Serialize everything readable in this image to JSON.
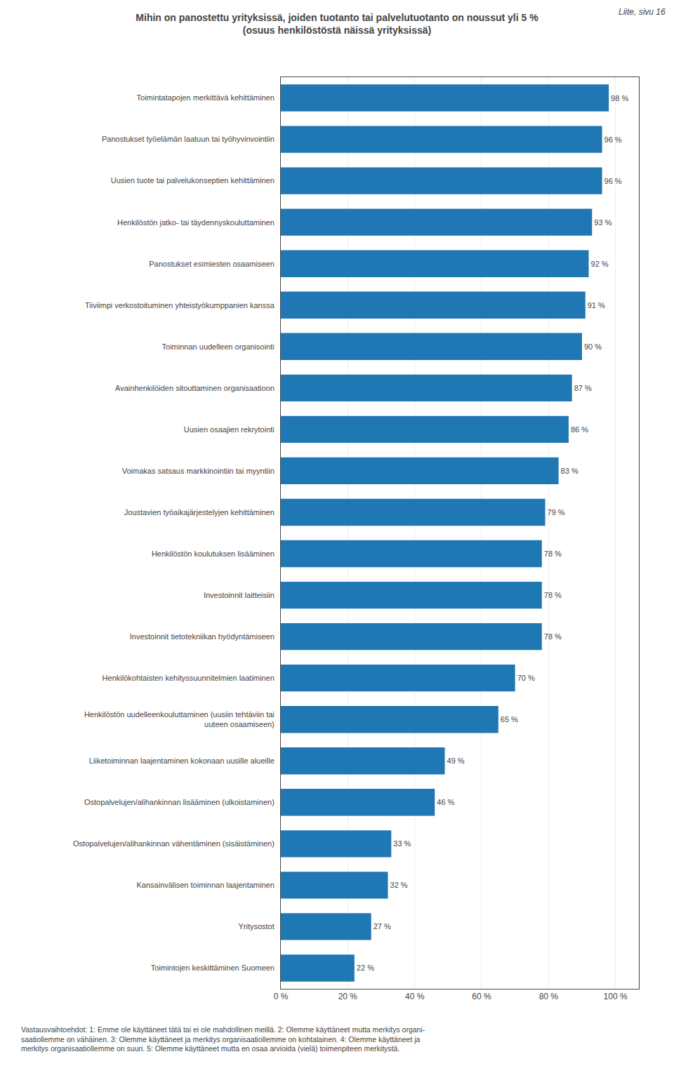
{
  "chart_data": {
    "type": "bar",
    "orientation": "horizontal",
    "title": "Mihin on panostettu yrityksissä, joiden tuotanto tai palvelutuotanto on noussut yli 5 %",
    "subtitle": "(osuus henkilöstöstä näissä yrityksissä)",
    "annotations": [
      "Liite, sivu 16",
      "Vastausvaihtoehdot: 1: Emme ole käyttäneet tätä tai ei ole mahdollinen meillä. 2: Olemme käyttäneet mutta merkitys organi-\nsaatiollemme on vähäinen. 3: Olemme käyttäneet ja merkitys organisaatiollemme on kohtalainen. 4: Olemme käyttäneet ja\nmerkitys organisaatiollemme on suuri. 5: Olemme käyttäneet mutta en osaa arvioida (vielä) toimenpiteen merkitystä."
    ],
    "categories": [
      "Toimintatapojen merkittävä kehittäminen",
      "Panostukset työelämän laatuun tai työhyvinvointiin",
      "Uusien tuote tai palvelukonseptien kehittäminen",
      "Henkilöstön jatko- tai täydennyskouluttaminen",
      "Panostukset esimiesten osaamiseen",
      "Tiiviimpi verkostoituminen yhteistyökumppanien kanssa",
      "Toiminnan uudelleen organisointi",
      "Avainhenkilöiden sitouttaminen organisaatioon",
      "Uusien osaajien rekrytointi",
      "Voimakas satsaus markkinointiin tai myyntiin",
      "Joustavien työaikajärjestelyjen kehittäminen",
      "Henkilöstön koulutuksen lisääminen",
      "Investoinnit laitteisiin",
      "Investoinnit tietotekniikan hyödyntämiseen",
      "Henkilökohtaisten kehityssuunnitelmien laatiminen",
      "Henkilöstön uudelleenkouluttaminen (uusiin tehtäviin tai\nuuteen osaamiseen)",
      "Liiketoiminnan laajentaminen kokonaan uusille alueille",
      "Ostopalvelujen/alihankinnan lisääminen (ulkoistaminen)",
      "Ostopalvelujen/alihankinnan vähentäminen (sisäistäminen)",
      "Kansainvälisen toiminnan laajentaminen",
      "Yritysostot",
      "Toimintojen keskittäminen Suomeen"
    ],
    "values": [
      98,
      96,
      96,
      93,
      92,
      91,
      90,
      87,
      86,
      83,
      79,
      78,
      78,
      78,
      70,
      65,
      49,
      46,
      33,
      32,
      27,
      22
    ],
    "value_labels": [
      "98 %",
      "96 %",
      "96 %",
      "93 %",
      "92 %",
      "91 %",
      "90 %",
      "87 %",
      "86 %",
      "83 %",
      "79 %",
      "78 %",
      "78 %",
      "78 %",
      "70 %",
      "65 %",
      "49 %",
      "46 %",
      "33 %",
      "32 %",
      "27 %",
      "22 %"
    ],
    "data_labels": true,
    "xlim": [
      0,
      107
    ],
    "xticks": [
      {
        "value": 0,
        "label": "0 %"
      },
      {
        "value": 20,
        "label": "20 %"
      },
      {
        "value": 40,
        "label": "40 %"
      },
      {
        "value": 60,
        "label": "60 %"
      },
      {
        "value": 80,
        "label": "80 %"
      },
      {
        "value": 100,
        "label": "100 %"
      }
    ],
    "grid": true
  }
}
